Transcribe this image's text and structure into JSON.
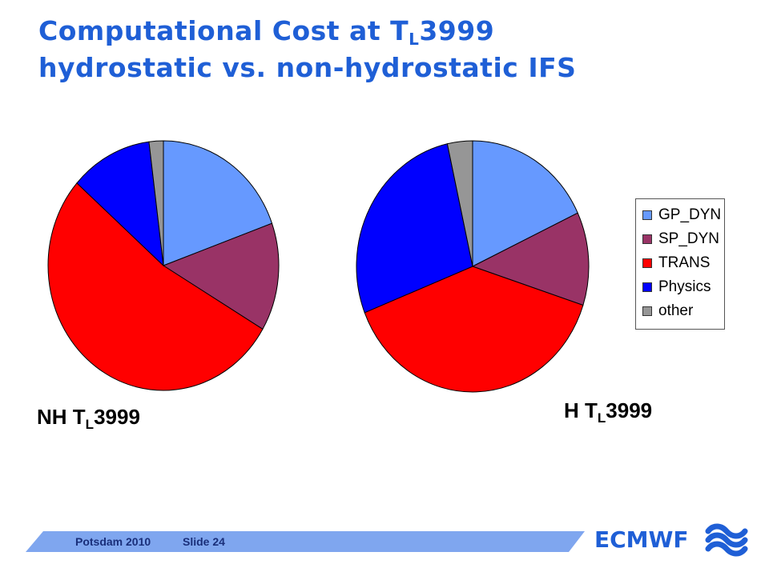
{
  "slide": {
    "title_line1_pre": "Computational Cost at T",
    "title_line1_sub": "L",
    "title_line1_post": "3999",
    "title_line2": "hydrostatic vs. non-hydrostatic IFS",
    "footer_left": "Potsdam 2010",
    "footer_slide": "Slide 24",
    "brand": "ECMWF"
  },
  "chart_data": [
    {
      "type": "pie",
      "label_pre": "NH T",
      "label_sub": "L",
      "label_post": "3999",
      "categories": [
        "GP_DYN",
        "SP_DYN",
        "TRANS",
        "Physics",
        "other"
      ],
      "values": [
        19.5,
        14,
        53,
        11.5,
        2
      ],
      "colors": [
        "#6699ff",
        "#993366",
        "#ff0000",
        "#0000ff",
        "#969696"
      ]
    },
    {
      "type": "pie",
      "label_pre": "H T",
      "label_sub": "L",
      "label_post": "3999",
      "categories": [
        "GP_DYN",
        "SP_DYN",
        "TRANS",
        "Physics",
        "other"
      ],
      "values": [
        18,
        12,
        39,
        27.5,
        3.5
      ],
      "colors": [
        "#6699ff",
        "#993366",
        "#ff0000",
        "#0000ff",
        "#969696"
      ]
    }
  ],
  "legend": {
    "items": [
      {
        "label": "GP_DYN",
        "color": "#6699ff"
      },
      {
        "label": "SP_DYN",
        "color": "#993366"
      },
      {
        "label": "TRANS",
        "color": "#ff0000"
      },
      {
        "label": "Physics",
        "color": "#0000ff"
      },
      {
        "label": "other",
        "color": "#969696"
      }
    ]
  }
}
